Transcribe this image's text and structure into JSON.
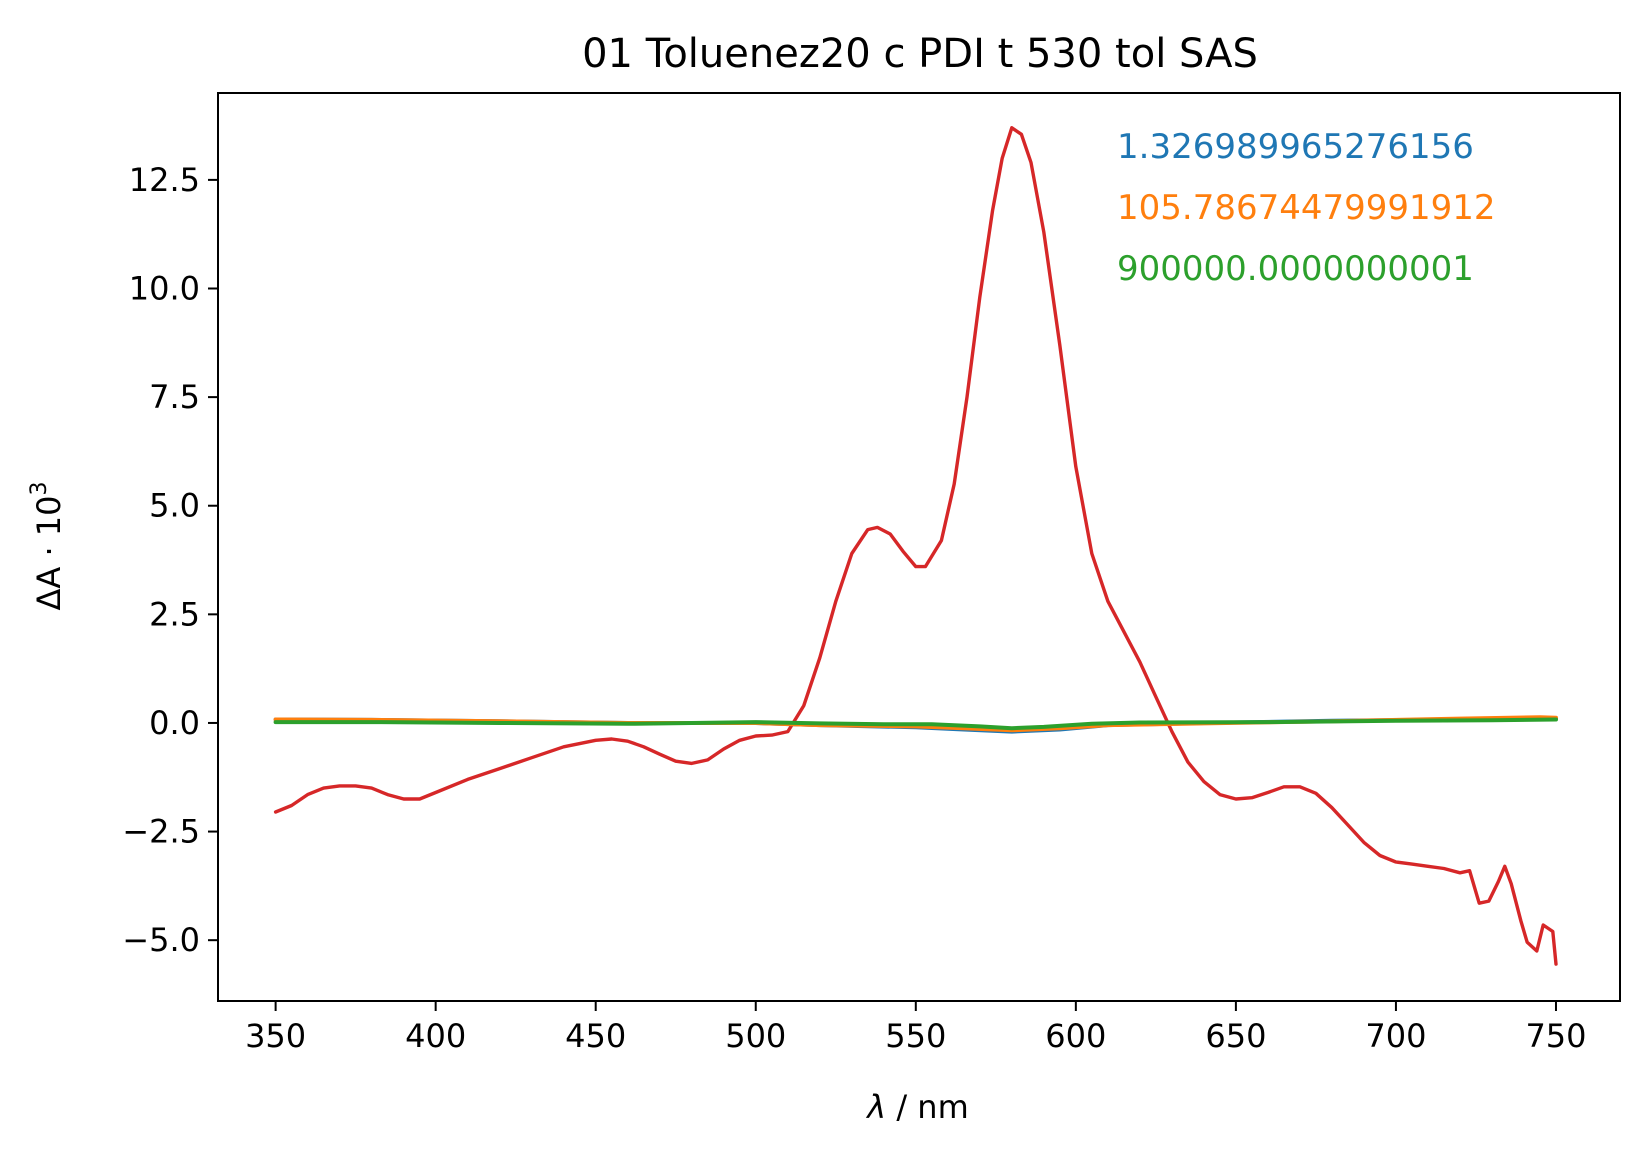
{
  "chart_data": {
    "type": "line",
    "title": "01 Toluenez20 c PDI t 530 tol SAS",
    "xlabel_symbol": "λ",
    "xlabel_unit": " / nm",
    "ylabel_prefix": "ΔA · 10",
    "ylabel_exponent": "3",
    "xlim": [
      332,
      770
    ],
    "ylim": [
      -6.4,
      14.5
    ],
    "xticks": [
      350,
      400,
      450,
      500,
      550,
      600,
      650,
      700,
      750
    ],
    "xtick_labels": [
      "350",
      "400",
      "450",
      "500",
      "550",
      "600",
      "650",
      "700",
      "750"
    ],
    "yticks": [
      -5.0,
      -2.5,
      0.0,
      2.5,
      5.0,
      7.5,
      10.0,
      12.5
    ],
    "ytick_labels": [
      "−5.0",
      "−2.5",
      "0.0",
      "2.5",
      "5.0",
      "7.5",
      "10.0",
      "12.5"
    ],
    "legend_placement": "top-right",
    "grid": false,
    "series": [
      {
        "name": "1.326989965276156",
        "color": "#1f77b4",
        "points": [
          [
            350,
            0.08
          ],
          [
            380,
            0.07
          ],
          [
            420,
            0.04
          ],
          [
            460,
            0.0
          ],
          [
            500,
            0.0
          ],
          [
            520,
            -0.05
          ],
          [
            550,
            -0.1
          ],
          [
            565,
            -0.15
          ],
          [
            580,
            -0.2
          ],
          [
            595,
            -0.15
          ],
          [
            610,
            -0.05
          ],
          [
            640,
            0.0
          ],
          [
            680,
            0.05
          ],
          [
            720,
            0.08
          ],
          [
            750,
            0.1
          ]
        ]
      },
      {
        "name": "105.78674479991912",
        "color": "#ff7f0e",
        "points": [
          [
            350,
            0.08
          ],
          [
            380,
            0.07
          ],
          [
            420,
            0.04
          ],
          [
            460,
            0.0
          ],
          [
            500,
            0.0
          ],
          [
            520,
            -0.05
          ],
          [
            550,
            -0.08
          ],
          [
            565,
            -0.12
          ],
          [
            580,
            -0.17
          ],
          [
            595,
            -0.12
          ],
          [
            610,
            -0.05
          ],
          [
            640,
            -0.01
          ],
          [
            680,
            0.04
          ],
          [
            720,
            0.1
          ],
          [
            745,
            0.13
          ],
          [
            750,
            0.12
          ]
        ]
      },
      {
        "name": "900000.0000000001",
        "color": "#2ca02c",
        "points": [
          [
            350,
            0.02
          ],
          [
            380,
            0.02
          ],
          [
            420,
            0.0
          ],
          [
            460,
            -0.02
          ],
          [
            480,
            0.0
          ],
          [
            500,
            0.02
          ],
          [
            520,
            -0.01
          ],
          [
            540,
            -0.03
          ],
          [
            555,
            -0.03
          ],
          [
            570,
            -0.08
          ],
          [
            580,
            -0.12
          ],
          [
            590,
            -0.09
          ],
          [
            605,
            -0.02
          ],
          [
            620,
            0.01
          ],
          [
            660,
            0.02
          ],
          [
            700,
            0.05
          ],
          [
            730,
            0.06
          ],
          [
            750,
            0.08
          ]
        ]
      },
      {
        "name": "",
        "color": "#d62728",
        "points": [
          [
            350,
            -2.05
          ],
          [
            355,
            -1.9
          ],
          [
            360,
            -1.65
          ],
          [
            365,
            -1.5
          ],
          [
            370,
            -1.45
          ],
          [
            375,
            -1.45
          ],
          [
            380,
            -1.5
          ],
          [
            385,
            -1.65
          ],
          [
            390,
            -1.75
          ],
          [
            395,
            -1.75
          ],
          [
            400,
            -1.6
          ],
          [
            410,
            -1.3
          ],
          [
            420,
            -1.05
          ],
          [
            430,
            -0.8
          ],
          [
            440,
            -0.55
          ],
          [
            450,
            -0.4
          ],
          [
            455,
            -0.37
          ],
          [
            460,
            -0.42
          ],
          [
            465,
            -0.55
          ],
          [
            470,
            -0.72
          ],
          [
            475,
            -0.88
          ],
          [
            480,
            -0.93
          ],
          [
            485,
            -0.85
          ],
          [
            490,
            -0.6
          ],
          [
            495,
            -0.4
          ],
          [
            500,
            -0.3
          ],
          [
            505,
            -0.28
          ],
          [
            510,
            -0.2
          ],
          [
            515,
            0.4
          ],
          [
            520,
            1.5
          ],
          [
            525,
            2.8
          ],
          [
            530,
            3.9
          ],
          [
            535,
            4.45
          ],
          [
            538,
            4.5
          ],
          [
            542,
            4.35
          ],
          [
            546,
            3.95
          ],
          [
            550,
            3.6
          ],
          [
            553,
            3.6
          ],
          [
            558,
            4.2
          ],
          [
            562,
            5.5
          ],
          [
            566,
            7.5
          ],
          [
            570,
            9.8
          ],
          [
            574,
            11.8
          ],
          [
            577,
            13.0
          ],
          [
            580,
            13.7
          ],
          [
            583,
            13.55
          ],
          [
            586,
            12.9
          ],
          [
            590,
            11.3
          ],
          [
            595,
            8.7
          ],
          [
            600,
            5.9
          ],
          [
            605,
            3.9
          ],
          [
            610,
            2.8
          ],
          [
            615,
            2.1
          ],
          [
            620,
            1.4
          ],
          [
            625,
            0.6
          ],
          [
            630,
            -0.2
          ],
          [
            635,
            -0.9
          ],
          [
            640,
            -1.35
          ],
          [
            645,
            -1.65
          ],
          [
            650,
            -1.75
          ],
          [
            655,
            -1.72
          ],
          [
            660,
            -1.6
          ],
          [
            665,
            -1.47
          ],
          [
            670,
            -1.47
          ],
          [
            675,
            -1.62
          ],
          [
            680,
            -1.95
          ],
          [
            685,
            -2.35
          ],
          [
            690,
            -2.75
          ],
          [
            695,
            -3.05
          ],
          [
            700,
            -3.2
          ],
          [
            705,
            -3.25
          ],
          [
            710,
            -3.3
          ],
          [
            715,
            -3.35
          ],
          [
            720,
            -3.45
          ],
          [
            723,
            -3.4
          ],
          [
            726,
            -4.15
          ],
          [
            729,
            -4.1
          ],
          [
            732,
            -3.65
          ],
          [
            734,
            -3.3
          ],
          [
            736,
            -3.7
          ],
          [
            739,
            -4.55
          ],
          [
            741,
            -5.05
          ],
          [
            744,
            -5.25
          ],
          [
            746,
            -4.65
          ],
          [
            749,
            -4.8
          ],
          [
            750,
            -5.55
          ]
        ]
      }
    ]
  }
}
